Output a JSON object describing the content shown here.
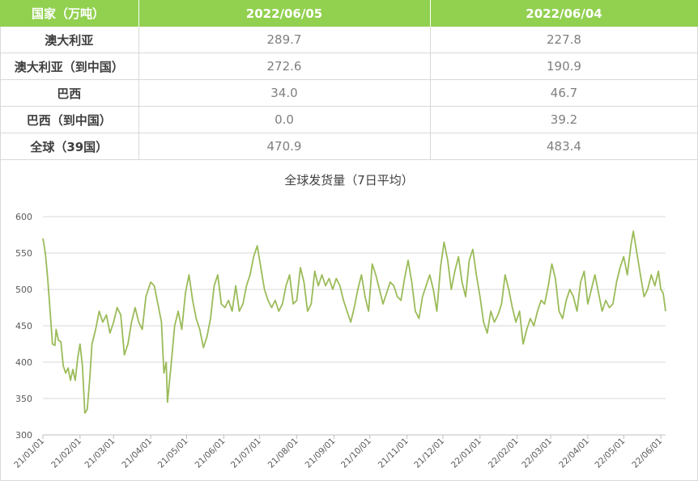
{
  "table": {
    "headers": [
      "国家（万吨）",
      "2022/06/05",
      "2022/06/04"
    ],
    "rows": [
      {
        "name": "澳大利亚",
        "v1": "289.7",
        "v2": "227.8"
      },
      {
        "name": "澳大利亚（到中国）",
        "v1": "272.6",
        "v2": "190.9"
      },
      {
        "name": "巴西",
        "v1": "34.0",
        "v2": "46.7"
      },
      {
        "name": "巴西（到中国）",
        "v1": "0.0",
        "v2": "39.2"
      },
      {
        "name": "全球（39国）",
        "v1": "470.9",
        "v2": "483.4"
      }
    ]
  },
  "chart_data": {
    "type": "line",
    "title": "全球发货量（7日平均）",
    "xlabel": "",
    "ylabel": "",
    "ylim": [
      300,
      600
    ],
    "yticks": [
      300,
      350,
      400,
      450,
      500,
      550,
      600
    ],
    "xlim": [
      "2021-01-01",
      "2022-06-05"
    ],
    "x_tick_labels": [
      "21/01/01",
      "21/02/01",
      "21/03/01",
      "21/04/01",
      "21/05/01",
      "21/06/01",
      "21/07/01",
      "21/08/01",
      "21/09/01",
      "21/10/01",
      "21/11/01",
      "21/12/01",
      "22/01/01",
      "22/02/01",
      "22/03/01",
      "22/04/01",
      "22/05/01",
      "22/06/01"
    ],
    "grid": true,
    "line_color": "#9bbb59",
    "series": [
      {
        "values": [
          [
            "2021-01-01",
            570
          ],
          [
            "2021-01-03",
            550
          ],
          [
            "2021-01-05",
            515
          ],
          [
            "2021-01-07",
            470
          ],
          [
            "2021-01-09",
            425
          ],
          [
            "2021-01-11",
            423
          ],
          [
            "2021-01-12",
            445
          ],
          [
            "2021-01-14",
            430
          ],
          [
            "2021-01-16",
            428
          ],
          [
            "2021-01-18",
            395
          ],
          [
            "2021-01-20",
            385
          ],
          [
            "2021-01-22",
            392
          ],
          [
            "2021-01-24",
            375
          ],
          [
            "2021-01-26",
            390
          ],
          [
            "2021-01-28",
            375
          ],
          [
            "2021-01-30",
            405
          ],
          [
            "2021-02-01",
            425
          ],
          [
            "2021-02-03",
            395
          ],
          [
            "2021-02-05",
            330
          ],
          [
            "2021-02-07",
            335
          ],
          [
            "2021-02-09",
            375
          ],
          [
            "2021-02-11",
            425
          ],
          [
            "2021-02-14",
            445
          ],
          [
            "2021-02-17",
            470
          ],
          [
            "2021-02-20",
            455
          ],
          [
            "2021-02-23",
            465
          ],
          [
            "2021-02-26",
            440
          ],
          [
            "2021-03-01",
            455
          ],
          [
            "2021-03-04",
            475
          ],
          [
            "2021-03-07",
            465
          ],
          [
            "2021-03-10",
            410
          ],
          [
            "2021-03-13",
            425
          ],
          [
            "2021-03-16",
            455
          ],
          [
            "2021-03-19",
            475
          ],
          [
            "2021-03-22",
            455
          ],
          [
            "2021-03-25",
            445
          ],
          [
            "2021-03-28",
            490
          ],
          [
            "2021-04-01",
            510
          ],
          [
            "2021-04-04",
            505
          ],
          [
            "2021-04-07",
            480
          ],
          [
            "2021-04-10",
            455
          ],
          [
            "2021-04-12",
            385
          ],
          [
            "2021-04-14",
            400
          ],
          [
            "2021-04-15",
            345
          ],
          [
            "2021-04-18",
            395
          ],
          [
            "2021-04-21",
            450
          ],
          [
            "2021-04-24",
            470
          ],
          [
            "2021-04-27",
            445
          ],
          [
            "2021-04-30",
            495
          ],
          [
            "2021-05-03",
            520
          ],
          [
            "2021-05-06",
            485
          ],
          [
            "2021-05-09",
            460
          ],
          [
            "2021-05-12",
            445
          ],
          [
            "2021-05-15",
            420
          ],
          [
            "2021-05-18",
            435
          ],
          [
            "2021-05-21",
            460
          ],
          [
            "2021-05-24",
            505
          ],
          [
            "2021-05-27",
            520
          ],
          [
            "2021-05-30",
            480
          ],
          [
            "2021-06-02",
            475
          ],
          [
            "2021-06-05",
            485
          ],
          [
            "2021-06-08",
            470
          ],
          [
            "2021-06-11",
            505
          ],
          [
            "2021-06-14",
            470
          ],
          [
            "2021-06-17",
            480
          ],
          [
            "2021-06-20",
            505
          ],
          [
            "2021-06-23",
            520
          ],
          [
            "2021-06-26",
            545
          ],
          [
            "2021-06-29",
            560
          ],
          [
            "2021-07-02",
            530
          ],
          [
            "2021-07-05",
            500
          ],
          [
            "2021-07-08",
            485
          ],
          [
            "2021-07-11",
            475
          ],
          [
            "2021-07-14",
            485
          ],
          [
            "2021-07-17",
            470
          ],
          [
            "2021-07-20",
            480
          ],
          [
            "2021-07-23",
            505
          ],
          [
            "2021-07-26",
            520
          ],
          [
            "2021-07-29",
            480
          ],
          [
            "2021-08-01",
            485
          ],
          [
            "2021-08-04",
            530
          ],
          [
            "2021-08-07",
            510
          ],
          [
            "2021-08-10",
            470
          ],
          [
            "2021-08-13",
            480
          ],
          [
            "2021-08-16",
            525
          ],
          [
            "2021-08-19",
            505
          ],
          [
            "2021-08-22",
            520
          ],
          [
            "2021-08-25",
            505
          ],
          [
            "2021-08-28",
            515
          ],
          [
            "2021-08-31",
            500
          ],
          [
            "2021-09-03",
            515
          ],
          [
            "2021-09-06",
            505
          ],
          [
            "2021-09-09",
            485
          ],
          [
            "2021-09-12",
            470
          ],
          [
            "2021-09-15",
            455
          ],
          [
            "2021-09-18",
            475
          ],
          [
            "2021-09-21",
            500
          ],
          [
            "2021-09-24",
            520
          ],
          [
            "2021-09-27",
            490
          ],
          [
            "2021-09-30",
            470
          ],
          [
            "2021-10-03",
            535
          ],
          [
            "2021-10-06",
            520
          ],
          [
            "2021-10-09",
            500
          ],
          [
            "2021-10-12",
            480
          ],
          [
            "2021-10-15",
            495
          ],
          [
            "2021-10-18",
            510
          ],
          [
            "2021-10-21",
            505
          ],
          [
            "2021-10-24",
            490
          ],
          [
            "2021-10-27",
            485
          ],
          [
            "2021-10-30",
            515
          ],
          [
            "2021-11-02",
            540
          ],
          [
            "2021-11-05",
            510
          ],
          [
            "2021-11-08",
            470
          ],
          [
            "2021-11-11",
            460
          ],
          [
            "2021-11-14",
            490
          ],
          [
            "2021-11-17",
            505
          ],
          [
            "2021-11-20",
            520
          ],
          [
            "2021-11-23",
            500
          ],
          [
            "2021-11-26",
            470
          ],
          [
            "2021-11-29",
            530
          ],
          [
            "2021-12-02",
            565
          ],
          [
            "2021-12-05",
            540
          ],
          [
            "2021-12-08",
            500
          ],
          [
            "2021-12-11",
            525
          ],
          [
            "2021-12-14",
            545
          ],
          [
            "2021-12-17",
            510
          ],
          [
            "2021-12-20",
            490
          ],
          [
            "2021-12-23",
            540
          ],
          [
            "2021-12-26",
            555
          ],
          [
            "2021-12-29",
            520
          ],
          [
            "2022-01-01",
            490
          ],
          [
            "2022-01-04",
            455
          ],
          [
            "2022-01-07",
            440
          ],
          [
            "2022-01-10",
            470
          ],
          [
            "2022-01-13",
            455
          ],
          [
            "2022-01-16",
            465
          ],
          [
            "2022-01-19",
            480
          ],
          [
            "2022-01-22",
            520
          ],
          [
            "2022-01-25",
            500
          ],
          [
            "2022-01-28",
            475
          ],
          [
            "2022-01-31",
            455
          ],
          [
            "2022-02-03",
            470
          ],
          [
            "2022-02-06",
            425
          ],
          [
            "2022-02-09",
            445
          ],
          [
            "2022-02-12",
            460
          ],
          [
            "2022-02-15",
            450
          ],
          [
            "2022-02-18",
            470
          ],
          [
            "2022-02-21",
            485
          ],
          [
            "2022-02-24",
            480
          ],
          [
            "2022-02-27",
            505
          ],
          [
            "2022-03-02",
            535
          ],
          [
            "2022-03-05",
            515
          ],
          [
            "2022-03-08",
            470
          ],
          [
            "2022-03-11",
            460
          ],
          [
            "2022-03-14",
            485
          ],
          [
            "2022-03-17",
            500
          ],
          [
            "2022-03-20",
            490
          ],
          [
            "2022-03-23",
            470
          ],
          [
            "2022-03-26",
            510
          ],
          [
            "2022-03-29",
            525
          ],
          [
            "2022-04-01",
            480
          ],
          [
            "2022-04-04",
            500
          ],
          [
            "2022-04-07",
            520
          ],
          [
            "2022-04-10",
            495
          ],
          [
            "2022-04-13",
            470
          ],
          [
            "2022-04-16",
            485
          ],
          [
            "2022-04-19",
            475
          ],
          [
            "2022-04-22",
            480
          ],
          [
            "2022-04-25",
            510
          ],
          [
            "2022-04-28",
            530
          ],
          [
            "2022-05-01",
            545
          ],
          [
            "2022-05-04",
            520
          ],
          [
            "2022-05-07",
            560
          ],
          [
            "2022-05-09",
            580
          ],
          [
            "2022-05-12",
            550
          ],
          [
            "2022-05-15",
            520
          ],
          [
            "2022-05-18",
            490
          ],
          [
            "2022-05-21",
            500
          ],
          [
            "2022-05-24",
            520
          ],
          [
            "2022-05-27",
            505
          ],
          [
            "2022-05-30",
            525
          ],
          [
            "2022-06-01",
            500
          ],
          [
            "2022-06-03",
            495
          ],
          [
            "2022-06-05",
            470
          ]
        ]
      }
    ]
  }
}
